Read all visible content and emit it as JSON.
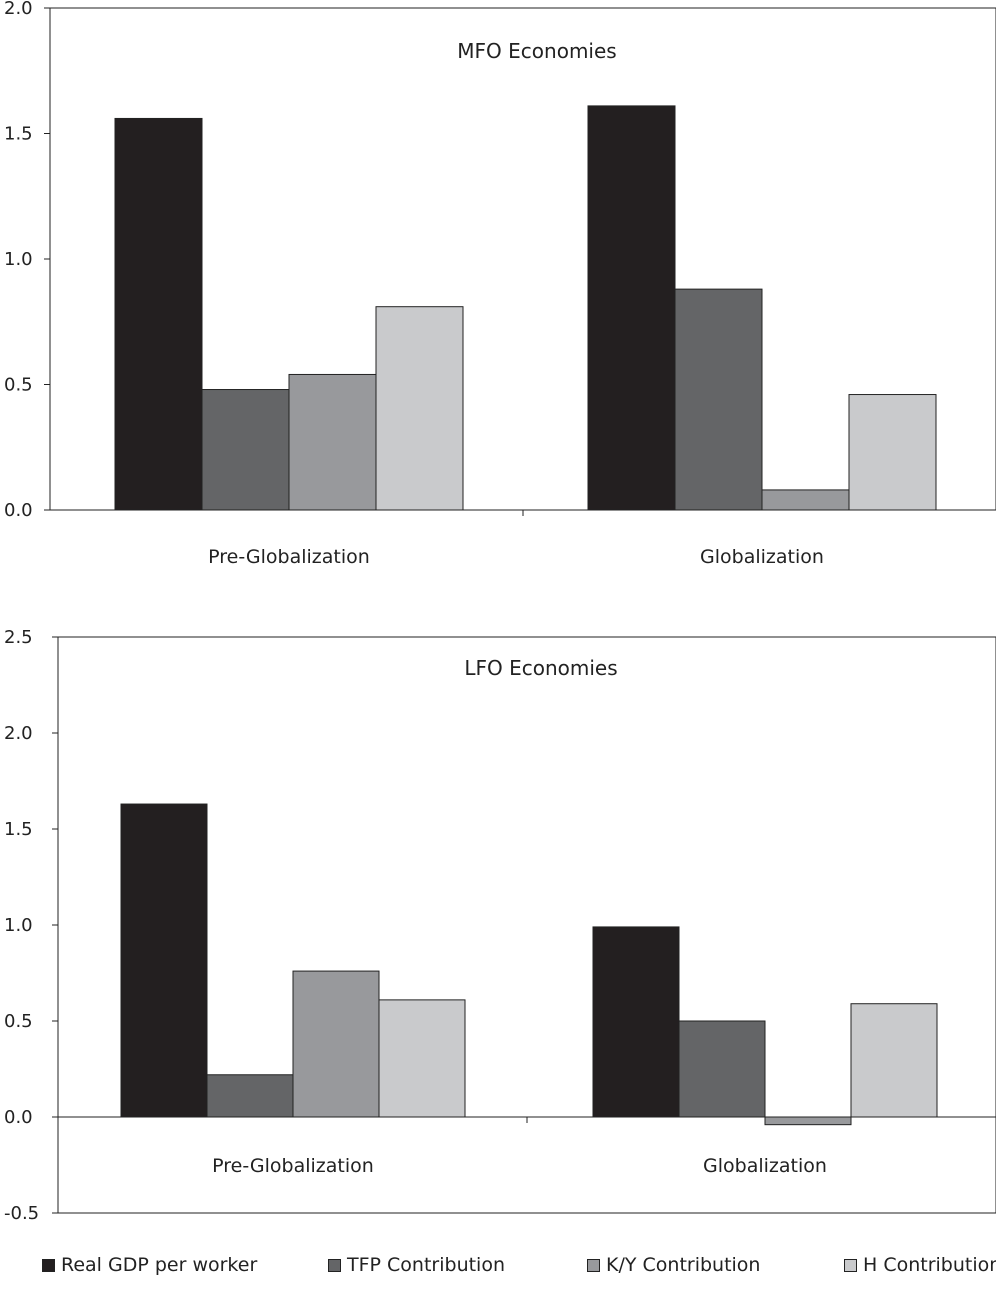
{
  "chart_data": [
    {
      "type": "bar",
      "title": "MFO Economies",
      "categories": [
        "Pre-Globalization",
        "Globalization"
      ],
      "ylim": [
        0,
        2.0
      ],
      "yticks": [
        "0.0",
        "0.5",
        "1.0",
        "1.5",
        "2.0"
      ],
      "ytick_values": [
        0,
        0.5,
        1.0,
        1.5,
        2.0
      ],
      "series": [
        {
          "name": "Real GDP per worker",
          "values": [
            1.56,
            1.61
          ],
          "color": "#231f20"
        },
        {
          "name": "TFP Contribution",
          "values": [
            0.48,
            0.88
          ],
          "color": "#646567"
        },
        {
          "name": "K/Y Contribution",
          "values": [
            0.54,
            0.08
          ],
          "color": "#98999c"
        },
        {
          "name": "H Contribution",
          "values": [
            0.81,
            0.46
          ],
          "color": "#c9cacc"
        }
      ]
    },
    {
      "type": "bar",
      "title": "LFO Economies",
      "categories": [
        "Pre-Globalization",
        "Globalization"
      ],
      "ylim": [
        -0.5,
        2.5
      ],
      "yticks": [
        "-0.5",
        "0.0",
        "0.5",
        "1.0",
        "1.5",
        "2.0",
        "2.5"
      ],
      "ytick_values": [
        -0.5,
        0,
        0.5,
        1.0,
        1.5,
        2.0,
        2.5
      ],
      "series": [
        {
          "name": "Real GDP per worker",
          "values": [
            1.63,
            0.99
          ],
          "color": "#231f20"
        },
        {
          "name": "TFP Contribution",
          "values": [
            0.22,
            0.5
          ],
          "color": "#646567"
        },
        {
          "name": "K/Y Contribution",
          "values": [
            0.76,
            -0.04
          ],
          "color": "#98999c"
        },
        {
          "name": "H Contribution",
          "values": [
            0.61,
            0.59
          ],
          "color": "#c9cacc"
        }
      ]
    }
  ],
  "legend": [
    {
      "label": "Real GDP per worker",
      "color": "#231f20"
    },
    {
      "label": "TFP Contribution",
      "color": "#646567"
    },
    {
      "label": "K/Y Contribution",
      "color": "#98999c"
    },
    {
      "label": "H Contribution",
      "color": "#c9cacc"
    }
  ]
}
